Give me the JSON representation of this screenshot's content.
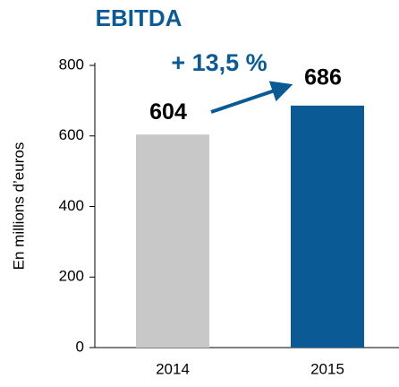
{
  "chart_data": {
    "type": "bar",
    "title": "EBITDA",
    "y_label": "En millions d’euros",
    "annotation": "+ 13,5 %",
    "categories": [
      "2014",
      "2015"
    ],
    "values": [
      604,
      686
    ],
    "colors": [
      "#c8c8c8",
      "#0a5a96"
    ],
    "ylim": [
      0,
      800
    ],
    "yticks": [
      0,
      200,
      400,
      600,
      800
    ],
    "grid": false
  }
}
